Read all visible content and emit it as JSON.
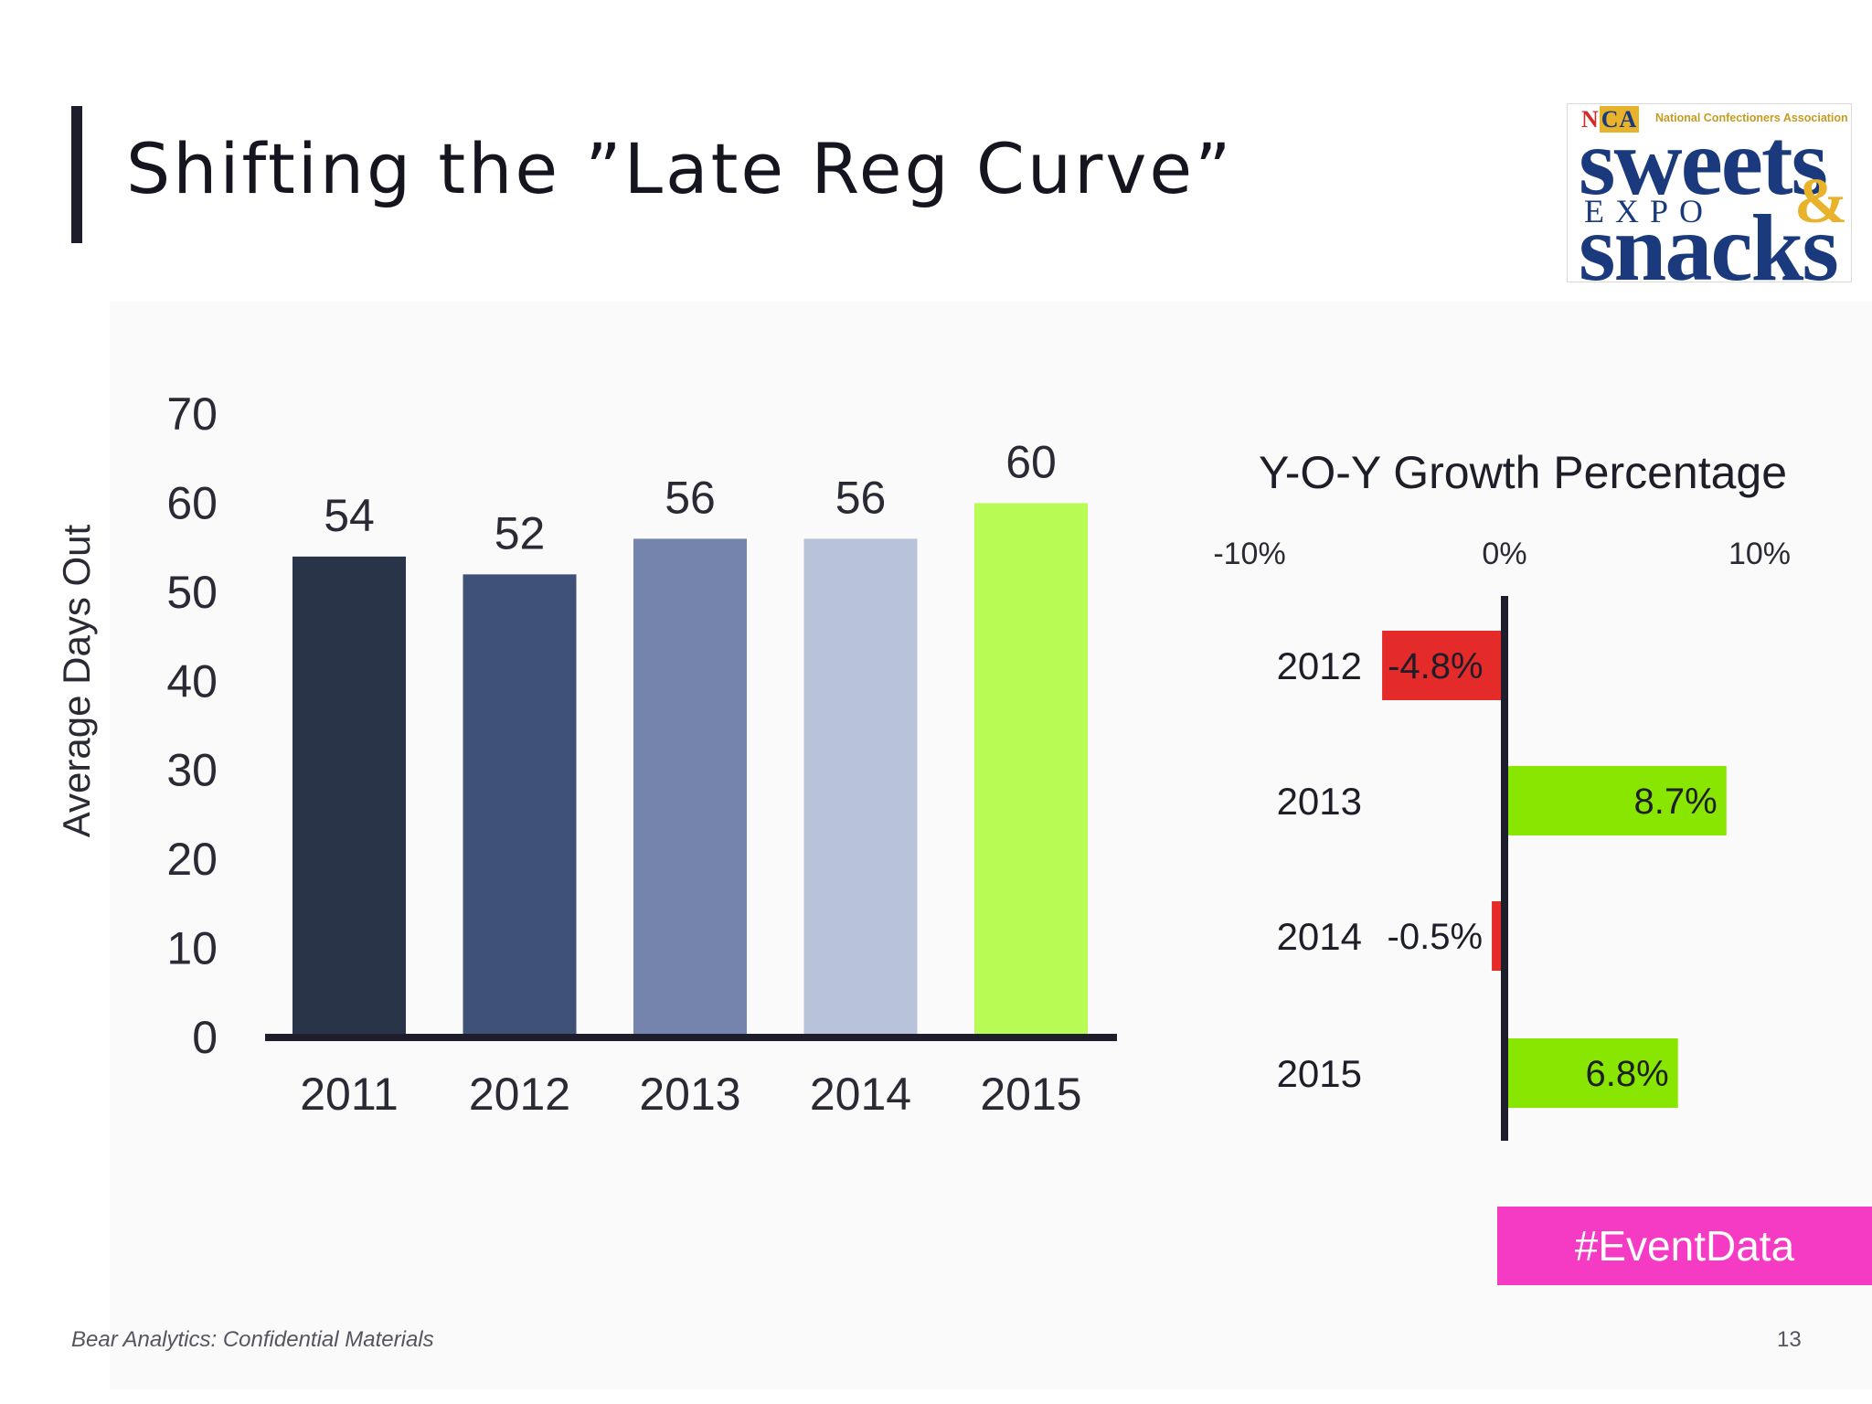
{
  "slide": {
    "title": "Shifting the ”Late Reg Curve”",
    "footer": "Bear Analytics: Confidential Materials",
    "page_number": "13",
    "tag": "#EventData",
    "logo": {
      "org_initials": "NCA",
      "org_name": "National Confectioners Association",
      "line1": "sweets",
      "line2": "EXPO",
      "ampersand": "&",
      "line3": "snacks"
    }
  },
  "chart_data": [
    {
      "type": "bar",
      "ylabel": "Average Days Out",
      "ylim": [
        0,
        70
      ],
      "yticks": [
        0,
        10,
        20,
        30,
        40,
        50,
        60,
        70
      ],
      "categories": [
        "2011",
        "2012",
        "2013",
        "2014",
        "2015"
      ],
      "values": [
        54,
        52,
        56,
        56,
        60
      ],
      "colors": [
        "#293449",
        "#3f5177",
        "#7584ad",
        "#b8c3d9",
        "#b8fb55"
      ]
    },
    {
      "type": "bar",
      "orientation": "horizontal",
      "title": "Y-O-Y Growth Percentage",
      "xlim": [
        -10,
        10
      ],
      "xticks": [
        "-10%",
        "0%",
        "10%"
      ],
      "categories": [
        "2012",
        "2013",
        "2014",
        "2015"
      ],
      "values": [
        -4.8,
        8.7,
        -0.5,
        6.8
      ],
      "labels": [
        "-4.8%",
        "8.7%",
        "-0.5%",
        "6.8%"
      ],
      "colors": {
        "negative": "#e52a2a",
        "positive": "#88e600"
      }
    }
  ]
}
